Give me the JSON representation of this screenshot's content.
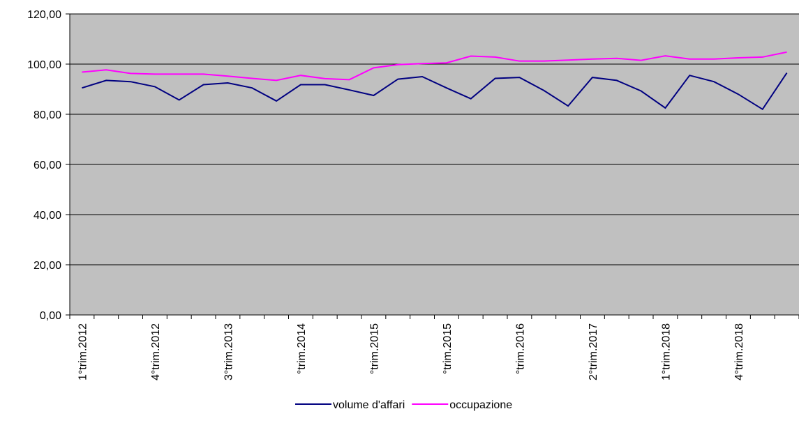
{
  "chart_data": {
    "type": "line",
    "categories": [
      "1°trim.2012",
      null,
      null,
      "4°trim.2012",
      null,
      null,
      "3°trim.2013",
      null,
      null,
      "°trim.2014",
      null,
      null,
      "°trim.2015",
      null,
      null,
      "°trim.2015",
      null,
      null,
      "°trim.2016",
      null,
      null,
      "2°trim.2017",
      null,
      null,
      "1°trim.2018",
      null,
      null,
      "4°trim.2018",
      null,
      null
    ],
    "series": [
      {
        "name": "volume d'affari",
        "color": "#000080",
        "values": [
          90.5,
          93.5,
          93,
          91,
          85.7,
          91.8,
          92.5,
          90.5,
          85.3,
          91.8,
          91.8,
          89.7,
          87.5,
          94,
          95,
          90.5,
          86.2,
          94.3,
          94.7,
          89.5,
          83.3,
          94.7,
          93.5,
          89.3,
          82.5,
          95.5,
          93,
          88,
          82,
          96.5
        ]
      },
      {
        "name": "occupazione",
        "color": "#ff00ff",
        "values": [
          96.8,
          97.7,
          96.3,
          96,
          96,
          96,
          95.2,
          94.3,
          93.5,
          95.5,
          94.2,
          93.8,
          98.5,
          99.8,
          100.2,
          100.5,
          103.2,
          102.8,
          101.2,
          101.2,
          101.6,
          102,
          102.3,
          101.5,
          103.3,
          102,
          102,
          102.5,
          102.8,
          104.8
        ]
      }
    ],
    "ylim": [
      0,
      120
    ],
    "yticks": [
      {
        "value": 0,
        "label": "0,00"
      },
      {
        "value": 20,
        "label": "20,00"
      },
      {
        "value": 40,
        "label": "40,00"
      },
      {
        "value": 60,
        "label": "60,00"
      },
      {
        "value": 80,
        "label": "80,00"
      },
      {
        "value": 100,
        "label": "100,00"
      },
      {
        "value": 120,
        "label": "120,00"
      }
    ],
    "grid": true,
    "legend": "bottom",
    "background": "#c0c0c0"
  }
}
